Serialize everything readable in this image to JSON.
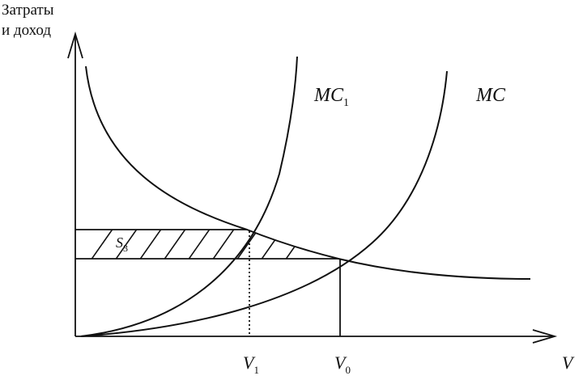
{
  "y_axis_label": [
    "Затраты",
    "и доход"
  ],
  "x_axis_label": "V",
  "curves": {
    "mc1": {
      "label": "MC",
      "subscript": "1"
    },
    "mc": {
      "label": "MC",
      "subscript": ""
    }
  },
  "points": {
    "v1": {
      "label": "V",
      "subscript": "1"
    },
    "v0": {
      "label": "V",
      "subscript": "0"
    }
  },
  "area": {
    "label": "S",
    "subscript": "3"
  },
  "colors": {
    "ink": "#111111",
    "background": "#ffffff"
  }
}
